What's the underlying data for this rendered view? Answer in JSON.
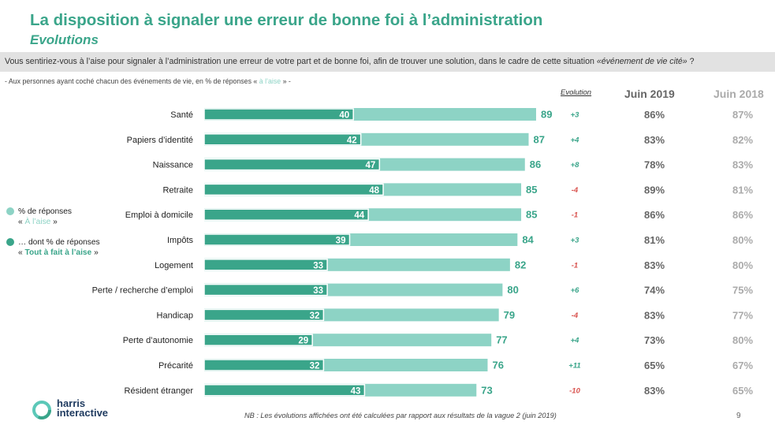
{
  "header": {
    "title": "La disposition à signaler une erreur de bonne foi à l’administration",
    "subtitle": "Evolutions"
  },
  "question": {
    "text": "Vous sentiriez-vous à l’aise pour signaler à l’administration une erreur de votre part et de bonne foi, afin de trouver une solution, dans le cadre de cette situation ",
    "italic": "«événement de vie cité»",
    "end": " ?"
  },
  "base_note": {
    "pre": "- Aux personnes ayant coché chacun des événements de vie, en % de réponses « ",
    "highlight": "à l’aise",
    "post": " » -"
  },
  "columns": {
    "evolution": "Evolution",
    "juin2019": "Juin 2019",
    "juin2018": "Juin 2018"
  },
  "legend": {
    "item1_line1": "% de réponses",
    "item1_line2_pre": "« ",
    "item1_line2_em": "À l’aise",
    "item1_line2_post": " »",
    "item2_line1": "… dont % de réponses",
    "item2_line2_pre": "« ",
    "item2_line2_em": "Tout à fait à l’aise",
    "item2_line2_post": " »"
  },
  "chart_data": {
    "type": "bar",
    "orientation": "horizontal",
    "categories": [
      "Santé",
      "Papiers d’identité",
      "Naissance",
      "Retraite",
      "Emploi à domicile",
      "Impôts",
      "Logement",
      "Perte / recherche d’emploi",
      "Handicap",
      "Perte d’autonomie",
      "Précarité",
      "Résident étranger"
    ],
    "series": [
      {
        "name": "% de réponses « À l’aise »",
        "values": [
          89,
          87,
          86,
          85,
          85,
          84,
          82,
          80,
          79,
          77,
          76,
          73
        ],
        "color": "#8dd3c5"
      },
      {
        "name": "… dont % de réponses « Tout à fait à l’aise »",
        "values": [
          40,
          42,
          47,
          48,
          44,
          39,
          33,
          33,
          32,
          29,
          32,
          43
        ],
        "color": "#3aa58a"
      }
    ],
    "evolution": [
      "+3",
      "+4",
      "+8",
      "-4",
      "-1",
      "+3",
      "-1",
      "+6",
      "-4",
      "+4",
      "+11",
      "-10"
    ],
    "juin2019": [
      "86%",
      "83%",
      "78%",
      "89%",
      "86%",
      "81%",
      "83%",
      "74%",
      "83%",
      "73%",
      "65%",
      "83%"
    ],
    "juin2018": [
      "87%",
      "82%",
      "83%",
      "81%",
      "86%",
      "80%",
      "80%",
      "75%",
      "77%",
      "80%",
      "67%",
      "65%"
    ],
    "xlim": [
      0,
      100
    ],
    "colors": {
      "positive": "#3aa58a",
      "negative": "#d9534f",
      "light": "#8dd3c5",
      "dark": "#3aa58a",
      "col2019": "#666666",
      "col2018": "#aaaaaa"
    }
  },
  "footer": {
    "logo_line1": "harris",
    "logo_line2": "interactive",
    "note": "NB : Les évolutions affichées ont été calculées par rapport aux résultats de la vague 2 (juin 2019)",
    "page": "9"
  }
}
